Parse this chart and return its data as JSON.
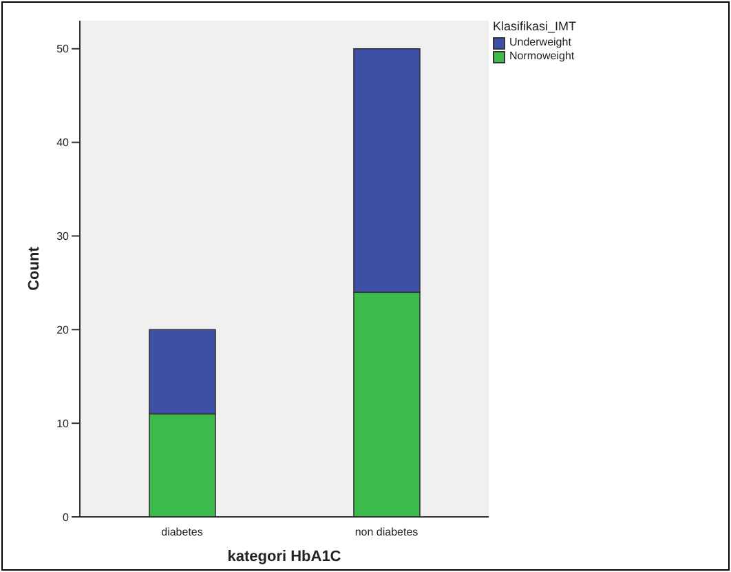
{
  "chart_data": {
    "type": "bar",
    "stacked": true,
    "xlabel": "kategori HbA1C",
    "ylabel": "Count",
    "legend_title": "Klasifikasi_IMT",
    "legend": "top right",
    "categories": [
      "diabetes",
      "non diabetes"
    ],
    "series": [
      {
        "name": "Normoweight",
        "color": "#3cba4c",
        "values": [
          11,
          24
        ]
      },
      {
        "name": "Underweight",
        "color": "#3d50a6",
        "values": [
          9,
          26
        ]
      }
    ],
    "ylim": [
      0,
      53
    ],
    "yticks": [
      0,
      10,
      20,
      30,
      40,
      50
    ]
  }
}
